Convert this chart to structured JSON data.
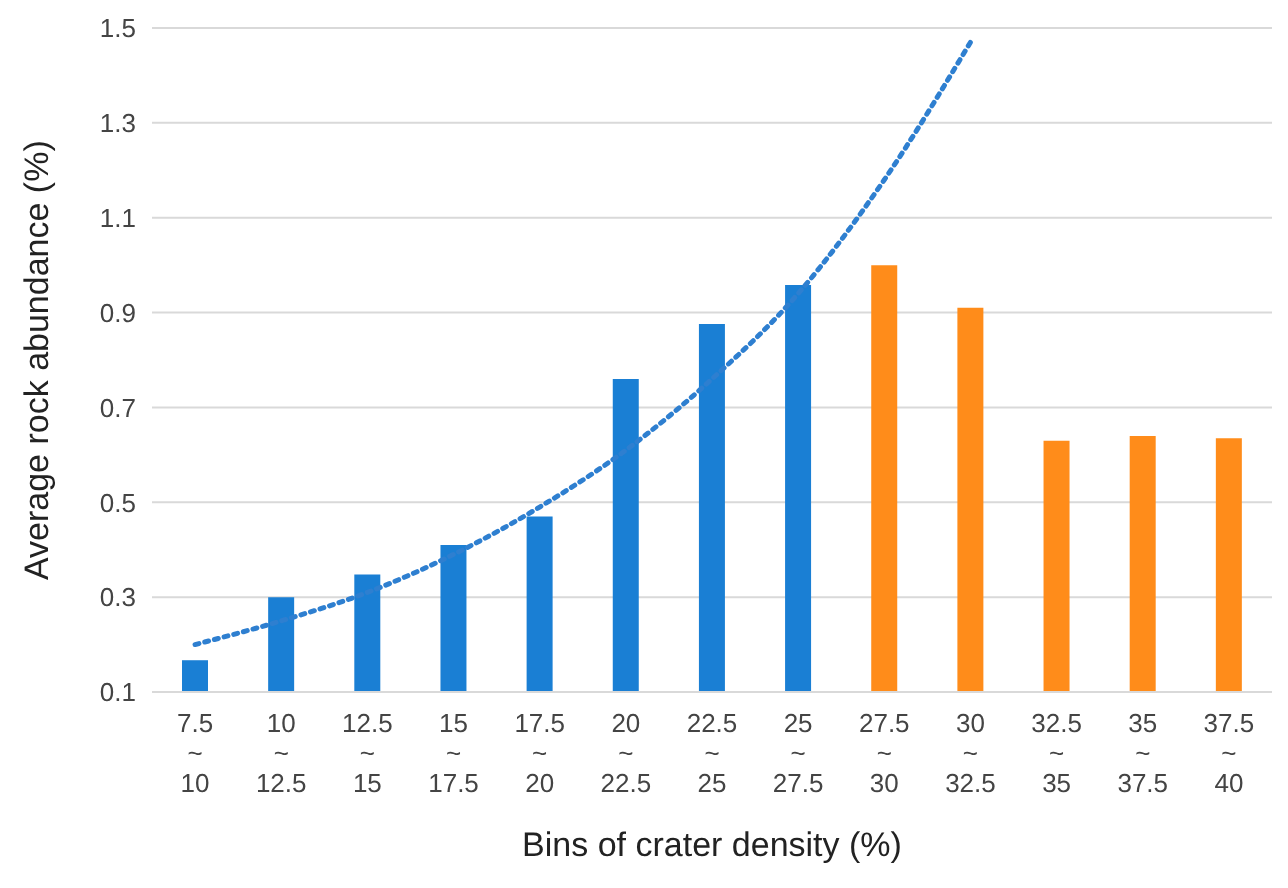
{
  "chart_data": {
    "type": "bar",
    "xlabel": "Bins of crater density (%)",
    "ylabel": "Average rock abundance (%)",
    "categories": [
      "7.5 ~ 10",
      "10 ~ 12.5",
      "12.5 ~ 15",
      "15 ~ 17.5",
      "17.5 ~ 20",
      "20 ~ 22.5",
      "22.5 ~ 25",
      "25 ~ 27.5",
      "27.5 ~ 30",
      "30 ~ 32.5",
      "32.5 ~ 35",
      "35 ~ 37.5",
      "37.5 ~ 40"
    ],
    "series": [
      {
        "colors": [
          "#1a7fd4",
          "#1a7fd4",
          "#1a7fd4",
          "#1a7fd4",
          "#1a7fd4",
          "#1a7fd4",
          "#1a7fd4",
          "#1a7fd4",
          "#ff8c1a",
          "#ff8c1a",
          "#ff8c1a",
          "#ff8c1a",
          "#ff8c1a"
        ],
        "values": [
          0.167,
          0.3,
          0.348,
          0.41,
          0.47,
          0.76,
          0.876,
          0.958,
          1.0,
          0.91,
          0.63,
          0.64,
          0.635
        ]
      },
      {
        "type": "line",
        "color": "#2e7fd0",
        "line_style": "dotted",
        "values": [
          0.2,
          0.25,
          0.31,
          0.39,
          0.49,
          0.61,
          0.76,
          0.94,
          1.18,
          1.47,
          null,
          null,
          null
        ]
      }
    ],
    "ylim": [
      0.1,
      1.5
    ],
    "yticks": [
      0.1,
      0.3,
      0.5,
      0.7,
      0.9,
      1.1,
      1.3,
      1.5
    ],
    "grid": "y"
  }
}
